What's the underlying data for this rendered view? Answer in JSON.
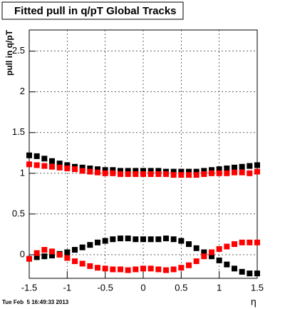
{
  "chart_data": {
    "type": "scatter",
    "title": "Fitted pull in q/pT  Global Tracks",
    "y_label": "pull in q/pT",
    "x_label": "η",
    "timestamp": "Tue Feb  5 16:49:33 2013",
    "x": [
      -1.5,
      -1.4,
      -1.3,
      -1.2,
      -1.1,
      -1.0,
      -0.9,
      -0.8,
      -0.7,
      -0.6,
      -0.5,
      -0.4,
      -0.3,
      -0.2,
      -0.1,
      0,
      0.1,
      0.2,
      0.3,
      0.4,
      0.5,
      0.6,
      0.7,
      0.8,
      0.9,
      1.0,
      1.1,
      1.2,
      1.3,
      1.4,
      1.5
    ],
    "series": [
      {
        "color": "#000000",
        "values": [
          1.22,
          1.21,
          1.18,
          1.15,
          1.12,
          1.1,
          1.08,
          1.07,
          1.06,
          1.05,
          1.04,
          1.04,
          1.03,
          1.03,
          1.03,
          1.03,
          1.03,
          1.03,
          1.02,
          1.02,
          1.02,
          1.02,
          1.02,
          1.03,
          1.04,
          1.05,
          1.06,
          1.07,
          1.08,
          1.09,
          1.1
        ]
      },
      {
        "color": "#ff0000",
        "values": [
          1.11,
          1.1,
          1.09,
          1.08,
          1.07,
          1.06,
          1.05,
          1.03,
          1.02,
          1.01,
          1.0,
          1.0,
          0.99,
          0.99,
          0.99,
          0.99,
          0.99,
          0.99,
          0.99,
          0.98,
          0.98,
          0.98,
          0.98,
          0.99,
          1.0,
          1.0,
          1.0,
          1.01,
          1.01,
          1.0,
          1.02
        ]
      },
      {
        "color": "#000000",
        "values": [
          -0.05,
          -0.03,
          -0.02,
          -0.01,
          0.01,
          0.03,
          0.06,
          0.09,
          0.12,
          0.15,
          0.17,
          0.19,
          0.2,
          0.2,
          0.19,
          0.19,
          0.19,
          0.19,
          0.2,
          0.19,
          0.17,
          0.13,
          0.08,
          0.03,
          -0.02,
          -0.07,
          -0.12,
          -0.17,
          -0.21,
          -0.23,
          -0.23
        ]
      },
      {
        "color": "#ff0000",
        "values": [
          -0.05,
          0.02,
          0.06,
          0.04,
          0.0,
          -0.04,
          -0.08,
          -0.11,
          -0.14,
          -0.16,
          -0.17,
          -0.18,
          -0.18,
          -0.19,
          -0.18,
          -0.17,
          -0.17,
          -0.18,
          -0.19,
          -0.18,
          -0.16,
          -0.13,
          -0.08,
          -0.02,
          0.03,
          0.07,
          0.1,
          0.13,
          0.15,
          0.15,
          0.15
        ]
      }
    ],
    "xlim": [
      -1.5,
      1.5
    ],
    "xticks": [
      -1.5,
      -1,
      -0.5,
      0,
      0.5,
      1,
      1.5
    ],
    "ylim": [
      -0.29,
      2.76
    ],
    "yticks": [
      0,
      0.5,
      1,
      1.5,
      2,
      2.5
    ],
    "grid": true
  }
}
